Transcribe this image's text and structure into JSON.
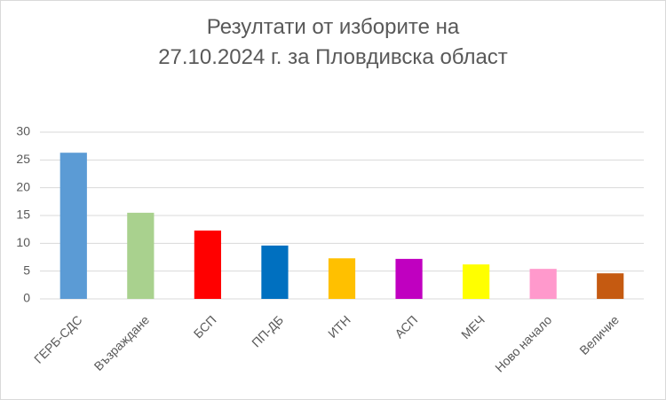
{
  "chart_data": {
    "type": "bar",
    "title": "Резултати от изборите на 27.10.2024 г. за Пловдивска област",
    "categories": [
      "ГЕРБ-СДС",
      "Възраждане",
      "БСП",
      "ПП-ДБ",
      "ИТН",
      "АСП",
      "МЕЧ",
      "Ново начало",
      "Величие"
    ],
    "values": [
      26.3,
      15.5,
      12.3,
      9.6,
      7.3,
      7.2,
      6.2,
      5.4,
      4.6
    ],
    "colors": [
      "#5b9bd5",
      "#a9d18e",
      "#ff0000",
      "#0070c0",
      "#ffc000",
      "#c000c0",
      "#ffff00",
      "#ff99cc",
      "#c55a11"
    ],
    "ylim": [
      0,
      30
    ],
    "yticks": [
      0,
      5,
      10,
      15,
      20,
      25,
      30
    ],
    "grid": true
  }
}
